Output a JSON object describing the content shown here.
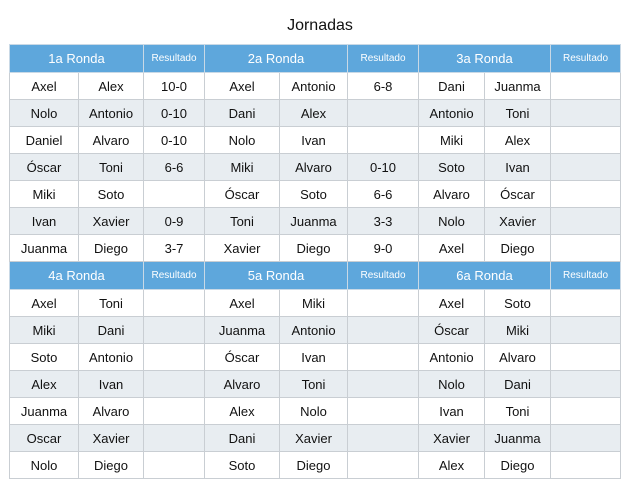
{
  "page": {
    "title": "Jornadas"
  },
  "result_header": "Resultado",
  "blocks": [
    {
      "rounds": [
        {
          "title": "1a Ronda",
          "matches": [
            [
              "Axel",
              "Alex",
              "10-0"
            ],
            [
              "Nolo",
              "Antonio",
              "0-10"
            ],
            [
              "Daniel",
              "Alvaro",
              "0-10"
            ],
            [
              "Óscar",
              "Toni",
              "6-6"
            ],
            [
              "Miki",
              "Soto",
              ""
            ],
            [
              "Ivan",
              "Xavier",
              "0-9"
            ],
            [
              "Juanma",
              "Diego",
              "3-7"
            ]
          ]
        },
        {
          "title": "2a Ronda",
          "matches": [
            [
              "Axel",
              "Antonio",
              "6-8"
            ],
            [
              "Dani",
              "Alex",
              ""
            ],
            [
              "Nolo",
              "Ivan",
              ""
            ],
            [
              "Miki",
              "Alvaro",
              "0-10"
            ],
            [
              "Óscar",
              "Soto",
              "6-6"
            ],
            [
              "Toni",
              "Juanma",
              "3-3"
            ],
            [
              "Xavier",
              "Diego",
              "9-0"
            ]
          ]
        },
        {
          "title": "3a Ronda",
          "matches": [
            [
              "Dani",
              "Juanma",
              ""
            ],
            [
              "Antonio",
              "Toni",
              ""
            ],
            [
              "Miki",
              "Alex",
              ""
            ],
            [
              "Soto",
              "Ivan",
              ""
            ],
            [
              "Alvaro",
              "Óscar",
              ""
            ],
            [
              "Nolo",
              "Xavier",
              ""
            ],
            [
              "Axel",
              "Diego",
              ""
            ]
          ]
        }
      ]
    },
    {
      "rounds": [
        {
          "title": "4a Ronda",
          "matches": [
            [
              "Axel",
              "Toni",
              ""
            ],
            [
              "Miki",
              "Dani",
              ""
            ],
            [
              "Soto",
              "Antonio",
              ""
            ],
            [
              "Alex",
              "Ivan",
              ""
            ],
            [
              "Juanma",
              "Alvaro",
              ""
            ],
            [
              "Oscar",
              "Xavier",
              ""
            ],
            [
              "Nolo",
              "Diego",
              ""
            ]
          ]
        },
        {
          "title": "5a Ronda",
          "matches": [
            [
              "Axel",
              "Miki",
              ""
            ],
            [
              "Juanma",
              "Antonio",
              ""
            ],
            [
              "Óscar",
              "Ivan",
              ""
            ],
            [
              "Alvaro",
              "Toni",
              ""
            ],
            [
              "Alex",
              "Nolo",
              ""
            ],
            [
              "Dani",
              "Xavier",
              ""
            ],
            [
              "Soto",
              "Diego",
              ""
            ]
          ]
        },
        {
          "title": "6a Ronda",
          "matches": [
            [
              "Axel",
              "Soto",
              ""
            ],
            [
              "Óscar",
              "Miki",
              ""
            ],
            [
              "Antonio",
              "Alvaro",
              ""
            ],
            [
              "Nolo",
              "Dani",
              ""
            ],
            [
              "Ivan",
              "Toni",
              ""
            ],
            [
              "Xavier",
              "Juanma",
              ""
            ],
            [
              "Alex",
              "Diego",
              ""
            ]
          ]
        }
      ]
    }
  ],
  "colors": {
    "header_bg": "#5ea7dc",
    "header_text": "#ffffff",
    "row_alt_bg": "#e8edf1",
    "row_bg": "#ffffff",
    "border": "#c9ced3"
  }
}
